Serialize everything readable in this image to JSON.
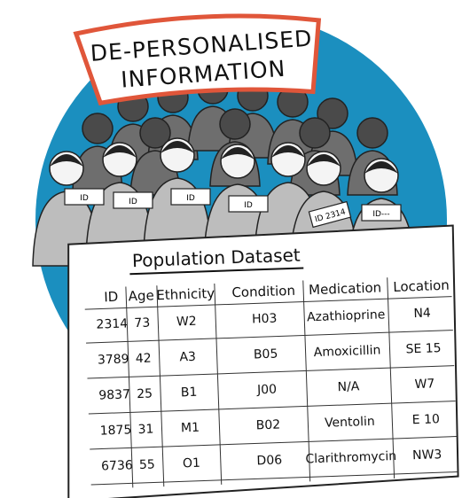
{
  "banner": {
    "lines": [
      "DE-PERSONALISED",
      "INFORMATION"
    ]
  },
  "badges": [
    "ID",
    "ID",
    "ID",
    "ID",
    "ID 2314",
    "ID---"
  ],
  "table": {
    "title": "Population Dataset",
    "columns": [
      "ID",
      "Age",
      "Ethnicity",
      "Condition",
      "Medication",
      "Location"
    ],
    "rows": [
      [
        "2314",
        "73",
        "W2",
        "H03",
        "Azathioprine",
        "N4"
      ],
      [
        "3789",
        "42",
        "A3",
        "B05",
        "Amoxicillin",
        "SE 15"
      ],
      [
        "9837",
        "25",
        "B1",
        "J00",
        "N/A",
        "W7"
      ],
      [
        "1875",
        "31",
        "M1",
        "B02",
        "Ventolin",
        "E 10"
      ],
      [
        "6736",
        "55",
        "O1",
        "D06",
        "Clarithromycin",
        "NW3"
      ]
    ]
  }
}
